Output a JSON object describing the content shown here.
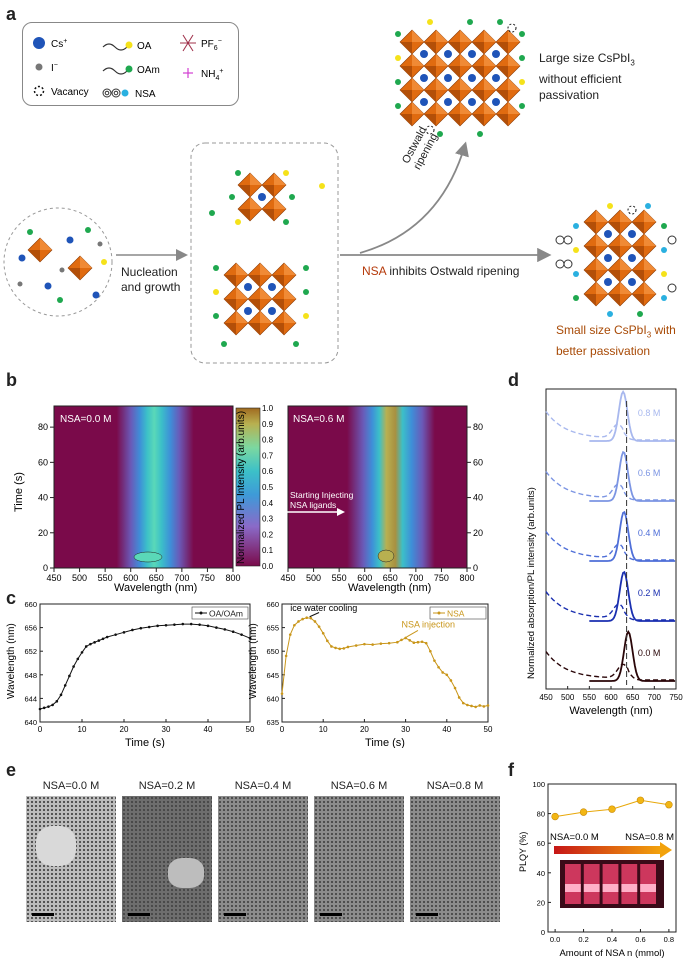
{
  "panels": {
    "a": "a",
    "b": "b",
    "c": "c",
    "d": "d",
    "e": "e",
    "f": "f"
  },
  "legend": {
    "cs": "Cs",
    "cs_sup": "+",
    "i": "I",
    "i_sup": "−",
    "vacancy": "Vacancy",
    "oa": "OA",
    "oam": "OAm",
    "nsa": "NSA",
    "pf6": "PF",
    "pf6_sub": "6",
    "pf6_sup": "−",
    "nh4": "NH",
    "nh4_sub": "4",
    "nh4_sup": "+"
  },
  "scheme": {
    "nucleation": "Nucleation",
    "growth": "and growth",
    "ostwald_1": "Ostwald",
    "ostwald_2": "ripening",
    "nsa_word": "NSA",
    "inhibits": " inhibits Ostwald ripening",
    "large_1": "Large size CsPbI",
    "large_sub": "3",
    "large_2": "without efficient",
    "large_3": "passivation",
    "small_1": "Small size CsPbI",
    "small_sub": "3",
    "small_1b": " with",
    "small_2": "better passivation"
  },
  "colors": {
    "orange": "#e06b10",
    "dark_orange": "#a84a06",
    "blue": "#1f54b8",
    "green": "#1fa84f",
    "yellow": "#f5e21a",
    "cyan": "#2ab0e0",
    "nsa_red": "#b5390a",
    "maroon": "#7a0a4a",
    "gold": "#c9961a",
    "black_line": "#111111"
  },
  "panel_b": {
    "left_label": "NSA=0.0 M",
    "right_label": "NSA=0.6 M",
    "ylabel": "Time (s)",
    "xlabel": "Wavelength (nm)",
    "yticks": [
      "0",
      "20",
      "40",
      "60",
      "80"
    ],
    "xticks": [
      "450",
      "500",
      "550",
      "600",
      "650",
      "700",
      "750",
      "800"
    ],
    "cbar_label": "Normalized PL Intensity (arb.units)",
    "cbar_ticks": [
      "0.0",
      "0.1",
      "0.2",
      "0.3",
      "0.4",
      "0.5",
      "0.6",
      "0.7",
      "0.8",
      "0.9",
      "1.0"
    ],
    "annotation_1": "Starting Injecting",
    "annotation_2": "NSA ligands"
  },
  "chart_data": [
    {
      "type": "line",
      "title": "",
      "legend": "OA/OAm",
      "xlabel": "Time (s)",
      "ylabel": "Wavelength (nm)",
      "xlim": [
        0,
        50
      ],
      "ylim": [
        640,
        660
      ],
      "xticks": [
        "0",
        "10",
        "20",
        "30",
        "40",
        "50"
      ],
      "yticks": [
        "640",
        "644",
        "648",
        "652",
        "656",
        "660"
      ],
      "x": [
        0,
        1,
        2,
        3,
        4,
        5,
        6,
        7,
        8,
        9,
        10,
        11,
        12,
        13,
        14,
        15,
        16,
        18,
        20,
        22,
        24,
        26,
        28,
        30,
        32,
        34,
        36,
        38,
        40,
        42,
        44,
        46,
        48,
        50
      ],
      "y": [
        642.2,
        642.4,
        642.6,
        642.9,
        643.5,
        644.6,
        646.2,
        647.8,
        649.4,
        650.7,
        651.8,
        652.8,
        653.2,
        653.5,
        653.8,
        654.1,
        654.4,
        654.8,
        655.2,
        655.6,
        655.9,
        656.1,
        656.3,
        656.4,
        656.5,
        656.6,
        656.6,
        656.5,
        656.3,
        656.0,
        655.7,
        655.3,
        654.8,
        654.2
      ]
    },
    {
      "type": "line",
      "title": "",
      "legend": "NSA",
      "xlabel": "Time (s)",
      "ylabel": "Wavelength (nm)",
      "xlim": [
        0,
        50
      ],
      "ylim": [
        635,
        660
      ],
      "xticks": [
        "0",
        "10",
        "20",
        "30",
        "40",
        "50"
      ],
      "yticks": [
        "635",
        "640",
        "645",
        "650",
        "655",
        "660"
      ],
      "annotations": [
        "ice water cooling",
        "NSA injection"
      ],
      "x": [
        0,
        1,
        2,
        3,
        4,
        5,
        6,
        7,
        8,
        9,
        10,
        11,
        12,
        13,
        14,
        15,
        16,
        18,
        20,
        22,
        24,
        26,
        28,
        29,
        30,
        31,
        32,
        33,
        34,
        35,
        36,
        37,
        38,
        39,
        40,
        41,
        42,
        43,
        44,
        45,
        46,
        47,
        48,
        49,
        50
      ],
      "y": [
        641,
        649,
        653.5,
        655.5,
        656.3,
        656.8,
        657.1,
        657,
        656.3,
        655.2,
        653.8,
        652.2,
        651,
        650.7,
        650.5,
        650.6,
        650.9,
        651.2,
        651.5,
        651.4,
        651.6,
        651.7,
        651.9,
        652.4,
        652.8,
        652.3,
        651.8,
        651.9,
        652.0,
        651.7,
        650.0,
        648.0,
        646.6,
        645.5,
        645.0,
        643.8,
        642.2,
        640.2,
        639.0,
        638.6,
        638.4,
        638.2,
        638.5,
        638.3,
        638.5
      ]
    },
    {
      "type": "line",
      "title": "",
      "xlabel": "Wavelength (nm)",
      "ylabel": "Normalized absorption/PL intensity (arb.units)",
      "xlim": [
        450,
        750
      ],
      "xticks": [
        "450",
        "500",
        "550",
        "600",
        "650",
        "700",
        "750"
      ],
      "series": [
        {
          "name": "0.0 M",
          "peak": 640,
          "color": "#2a0608"
        },
        {
          "name": "0.2 M",
          "peak": 630,
          "color": "#1a2fb0"
        },
        {
          "name": "0.4 M",
          "peak": 630,
          "color": "#4f6fd8"
        },
        {
          "name": "0.6 M",
          "peak": 629,
          "color": "#7c95e3"
        },
        {
          "name": "0.8 M",
          "peak": 628,
          "color": "#a8b8ee"
        }
      ],
      "reference_line": 636
    },
    {
      "type": "scatter",
      "title": "",
      "xlabel": "Amount of NSA n (mmol)",
      "ylabel": "PLQY (%)",
      "xlim": [
        -0.05,
        0.85
      ],
      "ylim": [
        0,
        100
      ],
      "xticks": [
        "0.0",
        "0.2",
        "0.4",
        "0.6",
        "0.8"
      ],
      "yticks": [
        "0",
        "20",
        "40",
        "60",
        "80",
        "100"
      ],
      "x": [
        0.0,
        0.2,
        0.4,
        0.6,
        0.8
      ],
      "y": [
        78,
        81,
        83,
        89,
        86
      ],
      "labels": [
        "NSA=0.0 M",
        "NSA=0.8 M"
      ]
    }
  ],
  "panel_e": {
    "labels": [
      "NSA=0.0 M",
      "NSA=0.2 M",
      "NSA=0.4 M",
      "NSA=0.6 M",
      "NSA=0.8 M"
    ]
  }
}
